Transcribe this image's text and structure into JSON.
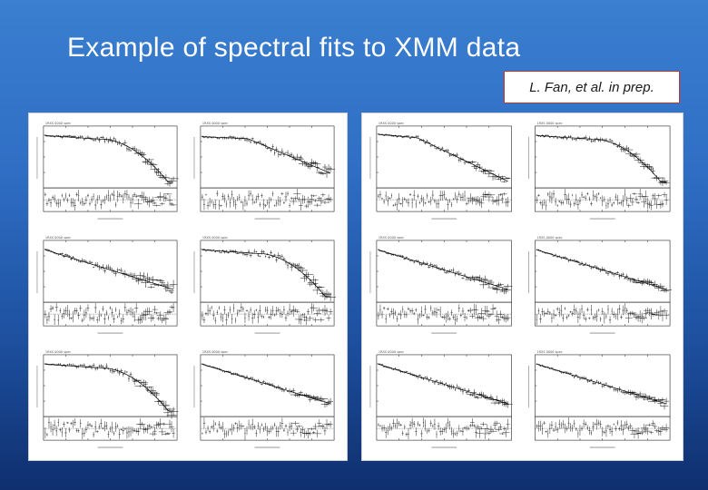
{
  "slide": {
    "title": "Example of spectral fits to XMM data",
    "citation": "L. Fan, et al. in prep."
  },
  "figures": [
    {
      "name": "left-figure",
      "panels": [
        {
          "label": "1RXS 0000 spec",
          "shape": "knee",
          "noise": 0.7,
          "seed": 3
        },
        {
          "label": "1RXS 0000 spec",
          "shape": "knee2",
          "noise": 0.8,
          "seed": 7
        },
        {
          "label": "1RXS 0000 spec",
          "shape": "powerlaw",
          "noise": 1.0,
          "seed": 11
        },
        {
          "label": "1RXS 0000 spec",
          "shape": "knee",
          "noise": 0.9,
          "seed": 13
        },
        {
          "label": "1RXS 0000 spec",
          "shape": "knee",
          "noise": 0.8,
          "seed": 17
        },
        {
          "label": "1RXS 0000 spec",
          "shape": "powerlaw",
          "noise": 0.5,
          "seed": 19
        }
      ]
    },
    {
      "name": "right-figure",
      "panels": [
        {
          "label": "1RXS 0000 spec",
          "shape": "steep",
          "noise": 0.6,
          "seed": 23
        },
        {
          "label": "1RXS 0000 spec",
          "shape": "knee",
          "noise": 0.7,
          "seed": 29
        },
        {
          "label": "1RXS 0000 spec",
          "shape": "powerlaw",
          "noise": 0.7,
          "seed": 31
        },
        {
          "label": "1RXS 0000 spec",
          "shape": "powerlaw",
          "noise": 0.6,
          "seed": 37
        },
        {
          "label": "1RXS 0000 spec",
          "shape": "powerlaw",
          "noise": 0.7,
          "seed": 41
        },
        {
          "label": "1RXS 0000 spec",
          "shape": "powerlaw",
          "noise": 0.6,
          "seed": 43
        }
      ]
    }
  ]
}
